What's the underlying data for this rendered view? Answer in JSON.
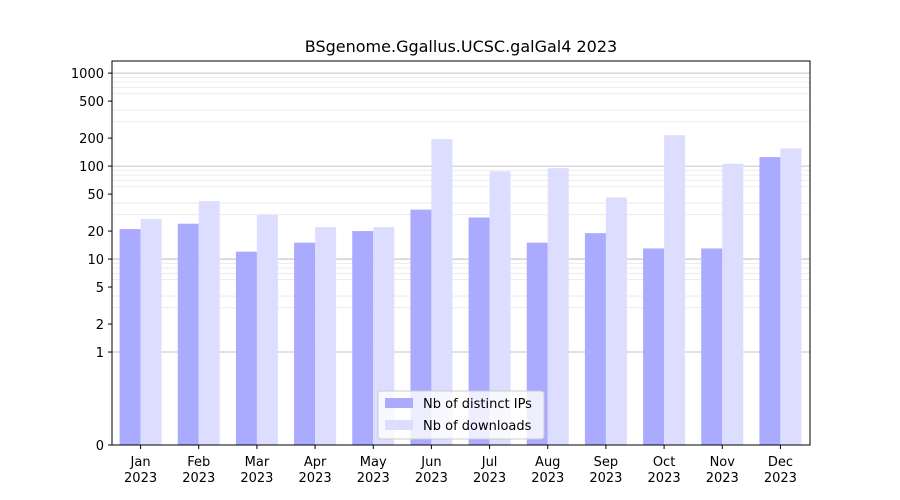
{
  "chart_data": {
    "type": "bar",
    "title": "BSgenome.Ggallus.UCSC.galGal4 2023",
    "xlabel": "",
    "ylabel": "",
    "y_scale": "symlog",
    "yticks": [
      0,
      1,
      2,
      5,
      10,
      20,
      50,
      100,
      200,
      500,
      1000
    ],
    "ytick_labels": [
      "0",
      "1",
      "2",
      "5",
      "10",
      "20",
      "50",
      "100",
      "200",
      "500",
      "1000"
    ],
    "ylim": [
      0,
      1350
    ],
    "categories": [
      {
        "month": "Jan",
        "year": "2023"
      },
      {
        "month": "Feb",
        "year": "2023"
      },
      {
        "month": "Mar",
        "year": "2023"
      },
      {
        "month": "Apr",
        "year": "2023"
      },
      {
        "month": "May",
        "year": "2023"
      },
      {
        "month": "Jun",
        "year": "2023"
      },
      {
        "month": "Jul",
        "year": "2023"
      },
      {
        "month": "Aug",
        "year": "2023"
      },
      {
        "month": "Sep",
        "year": "2023"
      },
      {
        "month": "Oct",
        "year": "2023"
      },
      {
        "month": "Nov",
        "year": "2023"
      },
      {
        "month": "Dec",
        "year": "2023"
      }
    ],
    "series": [
      {
        "name": "Nb of distinct IPs",
        "color": "#aaaaff",
        "values": [
          21,
          24,
          12,
          15,
          20,
          34,
          28,
          15,
          19,
          13,
          13,
          125
        ]
      },
      {
        "name": "Nb of downloads",
        "color": "#ddddff",
        "values": [
          27,
          42,
          30,
          22,
          22,
          195,
          88,
          95,
          46,
          215,
          106,
          155
        ]
      }
    ],
    "grid": true,
    "legend_position": "bottom-center"
  }
}
